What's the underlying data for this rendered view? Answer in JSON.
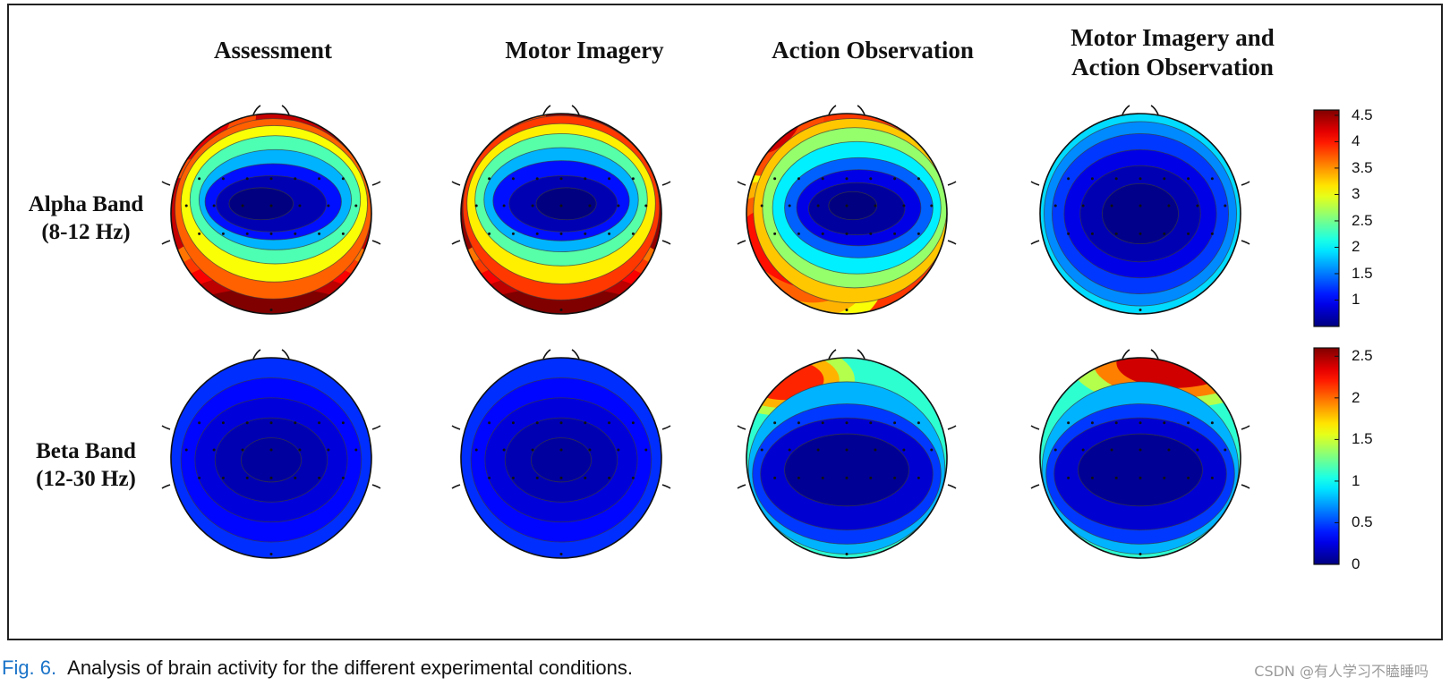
{
  "figure": {
    "column_titles": [
      "Assessment",
      "Motor Imagery",
      "Action Observation",
      "Motor Imagery and\nAction Observation"
    ],
    "row_labels": [
      "Alpha Band\n(8-12 Hz)",
      "Beta Band\n(12-30 Hz)"
    ]
  },
  "caption": {
    "label": "Fig. 6.",
    "text": "Analysis of brain activity for the different experimental conditions."
  },
  "watermark": "CSDN @有人学习不瞌睡吗",
  "chart_data": {
    "type": "heatmap",
    "subtype": "eeg-topographic-maps",
    "conditions": [
      "Assessment",
      "Motor Imagery",
      "Action Observation",
      "Motor Imagery and Action Observation"
    ],
    "bands": [
      "Alpha Band (8-12 Hz)",
      "Beta Band (12-30 Hz)"
    ],
    "colormap": "jet",
    "colorbars": [
      {
        "band": "Alpha Band (8-12 Hz)",
        "range": [
          0.5,
          4.6
        ],
        "ticks": [
          "4.5",
          "4",
          "3.5",
          "3",
          "2.5",
          "2",
          "1.5",
          "1"
        ]
      },
      {
        "band": "Beta Band (12-30 Hz)",
        "range": [
          0,
          2.6
        ],
        "ticks": [
          "2.5",
          "2",
          "1.5",
          "1",
          "0.5",
          "0"
        ]
      }
    ],
    "maps": [
      {
        "band": "Alpha Band (8-12 Hz)",
        "condition": "Assessment",
        "min": 0.6,
        "max": 4.2,
        "peak_region": "posterior / frontal-left",
        "low_region": "central"
      },
      {
        "band": "Alpha Band (8-12 Hz)",
        "condition": "Motor Imagery",
        "min": 0.6,
        "max": 4.5,
        "peak_region": "posterior",
        "low_region": "central"
      },
      {
        "band": "Alpha Band (8-12 Hz)",
        "condition": "Action Observation",
        "min": 0.7,
        "max": 3.8,
        "peak_region": "left-frontal / left-posterior",
        "low_region": "central-right"
      },
      {
        "band": "Alpha Band (8-12 Hz)",
        "condition": "Motor Imagery and Action Observation",
        "min": 0.6,
        "max": 1.9,
        "peak_region": "periphery",
        "low_region": "central"
      },
      {
        "band": "Beta Band (12-30 Hz)",
        "condition": "Assessment",
        "min": 0.1,
        "max": 0.45,
        "peak_region": "none",
        "low_region": "central"
      },
      {
        "band": "Beta Band (12-30 Hz)",
        "condition": "Motor Imagery",
        "min": 0.1,
        "max": 0.45,
        "peak_region": "none",
        "low_region": "central"
      },
      {
        "band": "Beta Band (12-30 Hz)",
        "condition": "Action Observation",
        "min": 0.1,
        "max": 2.2,
        "peak_region": "frontal-left",
        "low_region": "central"
      },
      {
        "band": "Beta Band (12-30 Hz)",
        "condition": "Motor Imagery and Action Observation",
        "min": 0.1,
        "max": 2.5,
        "peak_region": "frontal-right",
        "low_region": "central"
      }
    ]
  }
}
